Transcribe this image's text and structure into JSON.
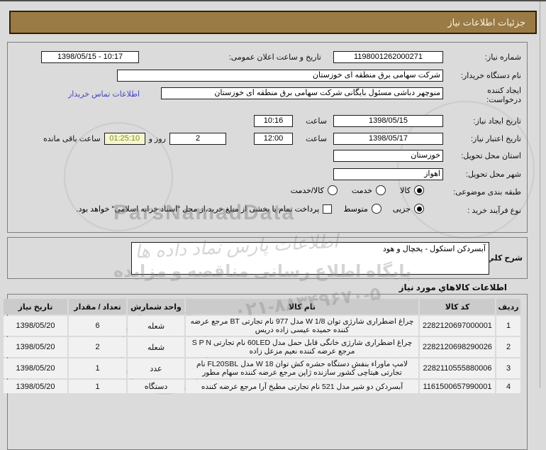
{
  "colors": {
    "titlebar_bg": "#9a7b45",
    "titlebar_text": "#f8f3e0",
    "page_bg": "#dbdbdb",
    "link": "#4343c8",
    "countdown_bg": "#f6f6cf",
    "countdown_text": "#8a8a2a",
    "table_header_bg": "#cbcbcb",
    "table_cell_bg": "#f1f1f1"
  },
  "header": {
    "title": "جزئیات اطلاعات نیاز"
  },
  "form": {
    "need_number": {
      "label": "شماره نیاز:",
      "value": "1198001262000271"
    },
    "announce": {
      "label": "تاریخ و ساعت اعلان عمومی:",
      "value": "1398/05/15 - 10:17"
    },
    "buyer_org": {
      "label": "نام دستگاه خریدار:",
      "value": "شرکت سهامی برق منطقه ای خوزستان"
    },
    "creator": {
      "label": "ایجاد کننده درخواست:",
      "value": "منوچهر دباشی مسئول بایگانی شرکت سهامی برق منطقه ای خوزستان",
      "contact_link": "اطلاعات تماس خریدار"
    },
    "created": {
      "label": "تاریخ ایجاد نیاز:",
      "date": "1398/05/15",
      "hour_label": "ساعت",
      "time": "10:16"
    },
    "validity": {
      "label": "تاریخ اعتبار نیاز:",
      "date": "1398/05/17",
      "hour_label": "ساعت",
      "time": "12:00"
    },
    "remaining": {
      "days": "2",
      "days_suffix": "روز و",
      "countdown": "01:25:10",
      "hours_suffix": "ساعت باقی مانده"
    },
    "province": {
      "label": "استان محل تحویل:",
      "value": "خوزستان"
    },
    "city": {
      "label": "شهر محل تحویل:",
      "value": "اهواز"
    },
    "subject": {
      "label": "طبقه بندی موضوعی:",
      "options": [
        {
          "label": "کالا",
          "selected": true
        },
        {
          "label": "خدمت",
          "selected": false
        },
        {
          "label": "کالا/خدمت",
          "selected": false
        }
      ]
    },
    "process": {
      "label": "نوع فرآیند خرید :",
      "options": [
        {
          "label": "جزیی",
          "selected": true
        },
        {
          "label": "متوسط",
          "selected": false
        }
      ],
      "treasury": {
        "label": "پرداخت تمام یا بخشی از مبلغ خرید،از محل \"اسناد خزانه اسلامی\" خواهد بود.",
        "checked": false
      }
    }
  },
  "description": {
    "label": "شرح کلي نیاز:",
    "value": "آبسردکن استکول - یخچال و هود"
  },
  "items": {
    "title": "اطلاعات کالاهاي مورد نیاز",
    "columns": [
      "ردیف",
      "کد کالا",
      "نام کالا",
      "واحد شمارش",
      "تعداد / مقدار",
      "تاریخ نیاز"
    ],
    "rows": [
      {
        "row": "1",
        "code": "2282120697000001",
        "name": "چراغ اضطراری شارژی توان 1/8 W مدل 977 نام تجارتی BT مرجع عرضه کننده حمیده عیسی زاده دریس",
        "unit": "شعله",
        "qty": "6",
        "date": "1398/05/20"
      },
      {
        "row": "2",
        "code": "2282120698290026",
        "name": "چراغ اضطراری شارژی خانگی قابل حمل مدل 60LED نام تجارتی S P N مرجع عرضه کننده نعیم مزعل زاده",
        "unit": "شعله",
        "qty": "2",
        "date": "1398/05/20"
      },
      {
        "row": "3",
        "code": "2282110555880006",
        "name": "لامپ ماوراء بنفش دستگاه حشره کش توان 18 W مدل FL20SBL نام تجارتی هیتاچی کشور سازنده ژاپن مرجع عرضه کننده سهام مطور",
        "unit": "عدد",
        "qty": "1",
        "date": "1398/05/20"
      },
      {
        "row": "4",
        "code": "1161500657990001",
        "name": "آبسردکن دو شیر مدل 521 نام تجارتی مطبخ آرا مرجع عرضه کننده",
        "unit": "دستگاه",
        "qty": "1",
        "date": "1398/05/20"
      }
    ]
  },
  "watermarks": {
    "brand_latin": "ParsNamadData",
    "brand_persian": "اطلاعات پارس نماد داده ها",
    "tagline": "پایگاه اطلاع رسانی مناقصه و مزایده",
    "phone": "۰۲۱-۸۸۳۴۹۶۷۰-۵"
  }
}
